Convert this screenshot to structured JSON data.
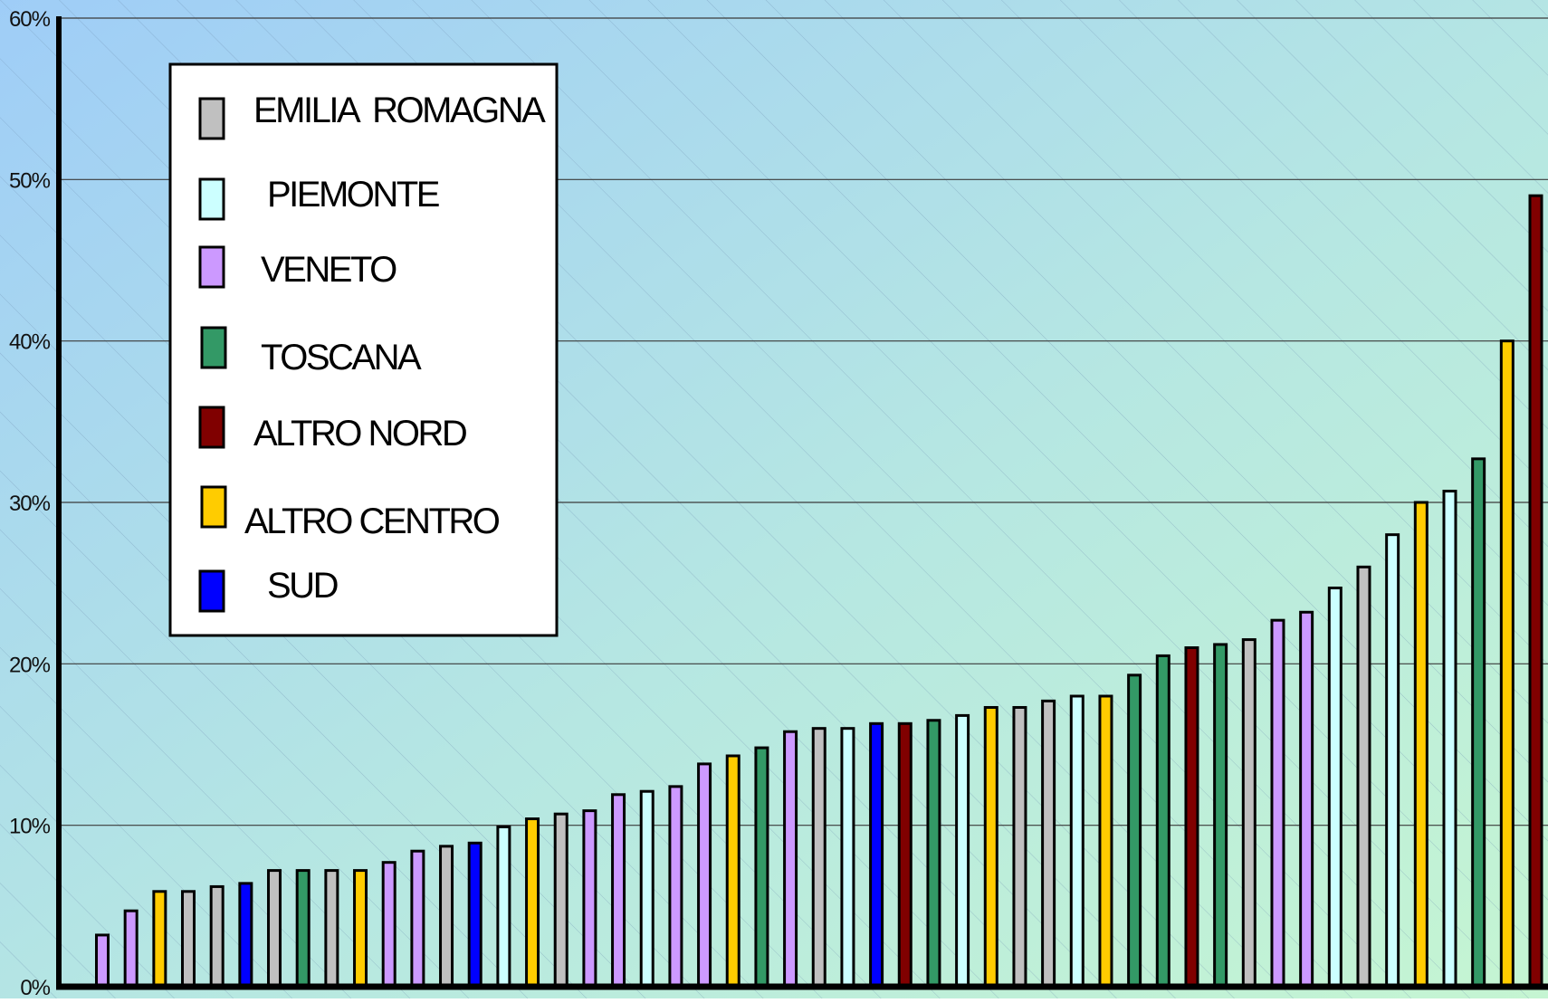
{
  "chart_data": {
    "type": "bar",
    "title": "",
    "xlabel": "",
    "ylabel": "",
    "ylim": [
      0,
      60
    ],
    "y_ticks": [
      {
        "value": 0,
        "label": "0%"
      },
      {
        "value": 10,
        "label": "10%"
      },
      {
        "value": 20,
        "label": "20%"
      },
      {
        "value": 30,
        "label": "30%"
      },
      {
        "value": 40,
        "label": "40%"
      },
      {
        "value": 50,
        "label": "50%"
      },
      {
        "value": 60,
        "label": "60%"
      }
    ],
    "grid": true,
    "legend_position": "top-left",
    "legend": [
      {
        "label": "EMILIA  ROMAGNA",
        "color": "#c0c0c0"
      },
      {
        "label": "PIEMONTE",
        "color": "#ccffff"
      },
      {
        "label": "VENETO",
        "color": "#cc99ff"
      },
      {
        "label": "TOSCANA",
        "color": "#339966"
      },
      {
        "label": "ALTRO NORD",
        "color": "#800000"
      },
      {
        "label": "ALTRO CENTRO",
        "color": "#ffcc00"
      },
      {
        "label": "SUD",
        "color": "#0000ff"
      }
    ],
    "bars": [
      {
        "region": "VENETO",
        "value": 3.2
      },
      {
        "region": "VENETO",
        "value": 4.7
      },
      {
        "region": "ALTRO CENTRO",
        "value": 5.9
      },
      {
        "region": "EMILIA  ROMAGNA",
        "value": 5.9
      },
      {
        "region": "EMILIA  ROMAGNA",
        "value": 6.2
      },
      {
        "region": "SUD",
        "value": 6.4
      },
      {
        "region": "EMILIA  ROMAGNA",
        "value": 7.2
      },
      {
        "region": "TOSCANA",
        "value": 7.2
      },
      {
        "region": "EMILIA  ROMAGNA",
        "value": 7.2
      },
      {
        "region": "ALTRO CENTRO",
        "value": 7.2
      },
      {
        "region": "VENETO",
        "value": 7.7
      },
      {
        "region": "VENETO",
        "value": 8.4
      },
      {
        "region": "EMILIA  ROMAGNA",
        "value": 8.7
      },
      {
        "region": "SUD",
        "value": 8.9
      },
      {
        "region": "PIEMONTE",
        "value": 9.9
      },
      {
        "region": "ALTRO CENTRO",
        "value": 10.4
      },
      {
        "region": "EMILIA  ROMAGNA",
        "value": 10.7
      },
      {
        "region": "VENETO",
        "value": 10.9
      },
      {
        "region": "VENETO",
        "value": 11.9
      },
      {
        "region": "PIEMONTE",
        "value": 12.1
      },
      {
        "region": "VENETO",
        "value": 12.4
      },
      {
        "region": "VENETO",
        "value": 13.8
      },
      {
        "region": "ALTRO CENTRO",
        "value": 14.3
      },
      {
        "region": "TOSCANA",
        "value": 14.8
      },
      {
        "region": "VENETO",
        "value": 15.8
      },
      {
        "region": "EMILIA  ROMAGNA",
        "value": 16.0
      },
      {
        "region": "PIEMONTE",
        "value": 16.0
      },
      {
        "region": "SUD",
        "value": 16.3
      },
      {
        "region": "ALTRO NORD",
        "value": 16.3
      },
      {
        "region": "TOSCANA",
        "value": 16.5
      },
      {
        "region": "PIEMONTE",
        "value": 16.8
      },
      {
        "region": "ALTRO CENTRO",
        "value": 17.3
      },
      {
        "region": "EMILIA  ROMAGNA",
        "value": 17.3
      },
      {
        "region": "EMILIA  ROMAGNA",
        "value": 17.7
      },
      {
        "region": "PIEMONTE",
        "value": 18.0
      },
      {
        "region": "ALTRO CENTRO",
        "value": 18.0
      },
      {
        "region": "TOSCANA",
        "value": 19.3
      },
      {
        "region": "TOSCANA",
        "value": 20.5
      },
      {
        "region": "ALTRO NORD",
        "value": 21.0
      },
      {
        "region": "TOSCANA",
        "value": 21.2
      },
      {
        "region": "EMILIA  ROMAGNA",
        "value": 21.5
      },
      {
        "region": "VENETO",
        "value": 22.7
      },
      {
        "region": "VENETO",
        "value": 23.2
      },
      {
        "region": "PIEMONTE",
        "value": 24.7
      },
      {
        "region": "EMILIA  ROMAGNA",
        "value": 26.0
      },
      {
        "region": "PIEMONTE",
        "value": 28.0
      },
      {
        "region": "ALTRO CENTRO",
        "value": 30.0
      },
      {
        "region": "PIEMONTE",
        "value": 30.7
      },
      {
        "region": "TOSCANA",
        "value": 32.7
      },
      {
        "region": "ALTRO CENTRO",
        "value": 40.0
      },
      {
        "region": "ALTRO NORD",
        "value": 49.0
      }
    ]
  }
}
